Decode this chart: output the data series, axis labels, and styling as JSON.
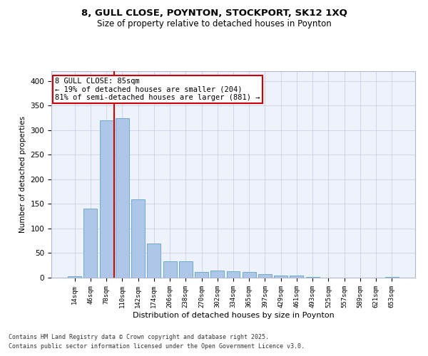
{
  "title1": "8, GULL CLOSE, POYNTON, STOCKPORT, SK12 1XQ",
  "title2": "Size of property relative to detached houses in Poynton",
  "xlabel": "Distribution of detached houses by size in Poynton",
  "ylabel": "Number of detached properties",
  "categories": [
    "14sqm",
    "46sqm",
    "78sqm",
    "110sqm",
    "142sqm",
    "174sqm",
    "206sqm",
    "238sqm",
    "270sqm",
    "302sqm",
    "334sqm",
    "365sqm",
    "397sqm",
    "429sqm",
    "461sqm",
    "493sqm",
    "525sqm",
    "557sqm",
    "589sqm",
    "621sqm",
    "653sqm"
  ],
  "values": [
    3,
    140,
    320,
    325,
    160,
    70,
    33,
    33,
    12,
    15,
    13,
    11,
    7,
    5,
    5,
    1,
    0,
    0,
    0,
    0,
    2
  ],
  "bar_color": "#aec6e8",
  "bar_edge_color": "#6baad0",
  "vline_x_index": 2.5,
  "vline_color": "#cc0000",
  "ylim": [
    0,
    420
  ],
  "yticks": [
    0,
    50,
    100,
    150,
    200,
    250,
    300,
    350,
    400
  ],
  "annotation_title": "8 GULL CLOSE: 85sqm",
  "annotation_line1": "← 19% of detached houses are smaller (204)",
  "annotation_line2": "81% of semi-detached houses are larger (881) →",
  "annotation_box_color": "#ffffff",
  "annotation_box_edge": "#cc0000",
  "footnote1": "Contains HM Land Registry data © Crown copyright and database right 2025.",
  "footnote2": "Contains public sector information licensed under the Open Government Licence v3.0.",
  "bg_color": "#eef2fb",
  "grid_color": "#c5cce0"
}
